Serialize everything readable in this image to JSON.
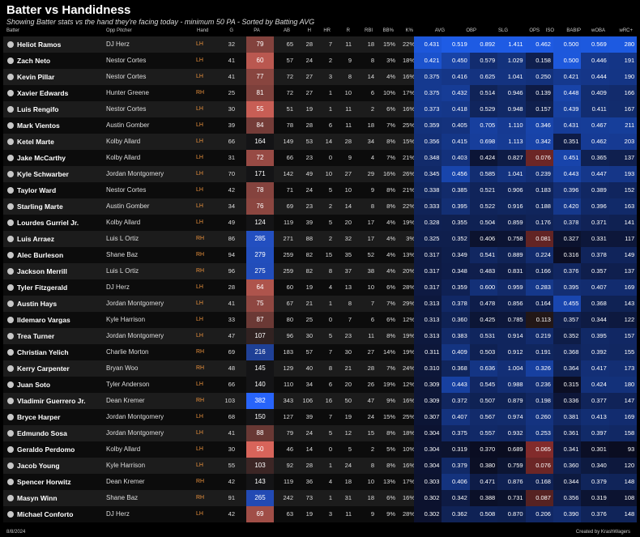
{
  "title": "Batter vs Handidness",
  "subtitle": "Showing Batter stats vs the hand they're facing today - minimum 50 PA - Sorted by Batting AVG",
  "columns": [
    "Batter",
    "Opp Pitcher",
    "Hand",
    "G",
    "PA",
    "AB",
    "H",
    "HR",
    "R",
    "RBI",
    "BB%",
    "K%",
    "AVG",
    "OBP",
    "SLG",
    "OPS",
    "ISO",
    "BABIP",
    "wOBA",
    "wRC+"
  ],
  "footer": {
    "date": "8/8/2024",
    "credit": "Created by KrashWagers"
  },
  "colors": {
    "pa_red": "#c0504d",
    "pa_blue": "#2a5bd7",
    "stat_blue": "#1f4fc0",
    "stat_red": "#a33a3a"
  },
  "rows": [
    {
      "batter": "Heliot Ramos",
      "pitcher": "DJ Herz",
      "hand": "LH",
      "g": "32",
      "pa": "79",
      "ab": "65",
      "h": "28",
      "hr": "7",
      "r": "11",
      "rbi": "18",
      "bb": "15%",
      "k": "22%",
      "avg": "0.431",
      "obp": "0.519",
      "slg": "0.892",
      "ops": "1.411",
      "iso": "0.462",
      "babip": "0.500",
      "woba": "0.569",
      "wrc": "280"
    },
    {
      "batter": "Zach Neto",
      "pitcher": "Nestor Cortes",
      "hand": "LH",
      "g": "41",
      "pa": "60",
      "ab": "57",
      "h": "24",
      "hr": "2",
      "r": "9",
      "rbi": "8",
      "bb": "3%",
      "k": "18%",
      "avg": "0.421",
      "obp": "0.450",
      "slg": "0.579",
      "ops": "1.029",
      "iso": "0.158",
      "babip": "0.500",
      "woba": "0.446",
      "wrc": "191"
    },
    {
      "batter": "Kevin Pillar",
      "pitcher": "Nestor Cortes",
      "hand": "LH",
      "g": "41",
      "pa": "77",
      "ab": "72",
      "h": "27",
      "hr": "3",
      "r": "8",
      "rbi": "14",
      "bb": "4%",
      "k": "16%",
      "avg": "0.375",
      "obp": "0.416",
      "slg": "0.625",
      "ops": "1.041",
      "iso": "0.250",
      "babip": "0.421",
      "woba": "0.444",
      "wrc": "190"
    },
    {
      "batter": "Xavier Edwards",
      "pitcher": "Hunter Greene",
      "hand": "RH",
      "g": "25",
      "pa": "81",
      "ab": "72",
      "h": "27",
      "hr": "1",
      "r": "10",
      "rbi": "6",
      "bb": "10%",
      "k": "17%",
      "avg": "0.375",
      "obp": "0.432",
      "slg": "0.514",
      "ops": "0.946",
      "iso": "0.139",
      "babip": "0.448",
      "woba": "0.409",
      "wrc": "166"
    },
    {
      "batter": "Luis Rengifo",
      "pitcher": "Nestor Cortes",
      "hand": "LH",
      "g": "30",
      "pa": "55",
      "ab": "51",
      "h": "19",
      "hr": "1",
      "r": "11",
      "rbi": "2",
      "bb": "6%",
      "k": "16%",
      "avg": "0.373",
      "obp": "0.418",
      "slg": "0.529",
      "ops": "0.948",
      "iso": "0.157",
      "babip": "0.439",
      "woba": "0.411",
      "wrc": "167"
    },
    {
      "batter": "Mark Vientos",
      "pitcher": "Austin Gomber",
      "hand": "LH",
      "g": "39",
      "pa": "84",
      "ab": "78",
      "h": "28",
      "hr": "6",
      "r": "11",
      "rbi": "18",
      "bb": "7%",
      "k": "25%",
      "avg": "0.359",
      "obp": "0.405",
      "slg": "0.705",
      "ops": "1.110",
      "iso": "0.346",
      "babip": "0.431",
      "woba": "0.467",
      "wrc": "211"
    },
    {
      "batter": "Ketel Marte",
      "pitcher": "Kolby Allard",
      "hand": "LH",
      "g": "66",
      "pa": "164",
      "ab": "149",
      "h": "53",
      "hr": "14",
      "r": "28",
      "rbi": "34",
      "bb": "8%",
      "k": "15%",
      "avg": "0.356",
      "obp": "0.415",
      "slg": "0.698",
      "ops": "1.113",
      "iso": "0.342",
      "babip": "0.351",
      "woba": "0.462",
      "wrc": "203"
    },
    {
      "batter": "Jake McCarthy",
      "pitcher": "Kolby Allard",
      "hand": "LH",
      "g": "31",
      "pa": "72",
      "ab": "66",
      "h": "23",
      "hr": "0",
      "r": "9",
      "rbi": "4",
      "bb": "7%",
      "k": "21%",
      "avg": "0.348",
      "obp": "0.403",
      "slg": "0.424",
      "ops": "0.827",
      "iso": "0.076",
      "babip": "0.451",
      "woba": "0.365",
      "wrc": "137"
    },
    {
      "batter": "Kyle Schwarber",
      "pitcher": "Jordan Montgomery",
      "hand": "LH",
      "g": "70",
      "pa": "171",
      "ab": "142",
      "h": "49",
      "hr": "10",
      "r": "27",
      "rbi": "29",
      "bb": "16%",
      "k": "26%",
      "avg": "0.345",
      "obp": "0.456",
      "slg": "0.585",
      "ops": "1.041",
      "iso": "0.239",
      "babip": "0.443",
      "woba": "0.447",
      "wrc": "193"
    },
    {
      "batter": "Taylor Ward",
      "pitcher": "Nestor Cortes",
      "hand": "LH",
      "g": "42",
      "pa": "78",
      "ab": "71",
      "h": "24",
      "hr": "5",
      "r": "10",
      "rbi": "9",
      "bb": "8%",
      "k": "21%",
      "avg": "0.338",
      "obp": "0.385",
      "slg": "0.521",
      "ops": "0.906",
      "iso": "0.183",
      "babip": "0.396",
      "woba": "0.389",
      "wrc": "152"
    },
    {
      "batter": "Starling Marte",
      "pitcher": "Austin Gomber",
      "hand": "LH",
      "g": "34",
      "pa": "76",
      "ab": "69",
      "h": "23",
      "hr": "2",
      "r": "14",
      "rbi": "8",
      "bb": "8%",
      "k": "22%",
      "avg": "0.333",
      "obp": "0.395",
      "slg": "0.522",
      "ops": "0.916",
      "iso": "0.188",
      "babip": "0.420",
      "woba": "0.396",
      "wrc": "163"
    },
    {
      "batter": "Lourdes Gurriel Jr.",
      "pitcher": "Kolby Allard",
      "hand": "LH",
      "g": "49",
      "pa": "124",
      "ab": "119",
      "h": "39",
      "hr": "5",
      "r": "20",
      "rbi": "17",
      "bb": "4%",
      "k": "19%",
      "avg": "0.328",
      "obp": "0.355",
      "slg": "0.504",
      "ops": "0.859",
      "iso": "0.176",
      "babip": "0.378",
      "woba": "0.371",
      "wrc": "141"
    },
    {
      "batter": "Luis Arraez",
      "pitcher": "Luis L Ortiz",
      "hand": "RH",
      "g": "86",
      "pa": "285",
      "ab": "271",
      "h": "88",
      "hr": "2",
      "r": "32",
      "rbi": "17",
      "bb": "4%",
      "k": "3%",
      "avg": "0.325",
      "obp": "0.352",
      "slg": "0.406",
      "ops": "0.758",
      "iso": "0.081",
      "babip": "0.327",
      "woba": "0.331",
      "wrc": "117"
    },
    {
      "batter": "Alec Burleson",
      "pitcher": "Shane Baz",
      "hand": "RH",
      "g": "94",
      "pa": "279",
      "ab": "259",
      "h": "82",
      "hr": "15",
      "r": "35",
      "rbi": "52",
      "bb": "4%",
      "k": "13%",
      "avg": "0.317",
      "obp": "0.349",
      "slg": "0.541",
      "ops": "0.889",
      "iso": "0.224",
      "babip": "0.316",
      "woba": "0.378",
      "wrc": "149"
    },
    {
      "batter": "Jackson Merrill",
      "pitcher": "Luis L Ortiz",
      "hand": "RH",
      "g": "96",
      "pa": "275",
      "ab": "259",
      "h": "82",
      "hr": "8",
      "r": "37",
      "rbi": "38",
      "bb": "4%",
      "k": "20%",
      "avg": "0.317",
      "obp": "0.348",
      "slg": "0.483",
      "ops": "0.831",
      "iso": "0.166",
      "babip": "0.376",
      "woba": "0.357",
      "wrc": "137"
    },
    {
      "batter": "Tyler Fitzgerald",
      "pitcher": "DJ Herz",
      "hand": "LH",
      "g": "28",
      "pa": "64",
      "ab": "60",
      "h": "19",
      "hr": "4",
      "r": "13",
      "rbi": "10",
      "bb": "6%",
      "k": "28%",
      "avg": "0.317",
      "obp": "0.359",
      "slg": "0.600",
      "ops": "0.959",
      "iso": "0.283",
      "babip": "0.395",
      "woba": "0.407",
      "wrc": "169"
    },
    {
      "batter": "Austin Hays",
      "pitcher": "Jordan Montgomery",
      "hand": "LH",
      "g": "41",
      "pa": "75",
      "ab": "67",
      "h": "21",
      "hr": "1",
      "r": "8",
      "rbi": "7",
      "bb": "7%",
      "k": "29%",
      "avg": "0.313",
      "obp": "0.378",
      "slg": "0.478",
      "ops": "0.856",
      "iso": "0.164",
      "babip": "0.455",
      "woba": "0.368",
      "wrc": "143"
    },
    {
      "batter": "Ildemaro Vargas",
      "pitcher": "Kyle Harrison",
      "hand": "LH",
      "g": "33",
      "pa": "87",
      "ab": "80",
      "h": "25",
      "hr": "0",
      "r": "7",
      "rbi": "6",
      "bb": "6%",
      "k": "12%",
      "avg": "0.313",
      "obp": "0.360",
      "slg": "0.425",
      "ops": "0.785",
      "iso": "0.113",
      "babip": "0.357",
      "woba": "0.344",
      "wrc": "122"
    },
    {
      "batter": "Trea Turner",
      "pitcher": "Jordan Montgomery",
      "hand": "LH",
      "g": "47",
      "pa": "107",
      "ab": "96",
      "h": "30",
      "hr": "5",
      "r": "23",
      "rbi": "11",
      "bb": "8%",
      "k": "19%",
      "avg": "0.313",
      "obp": "0.383",
      "slg": "0.531",
      "ops": "0.914",
      "iso": "0.219",
      "babip": "0.352",
      "woba": "0.395",
      "wrc": "157"
    },
    {
      "batter": "Christian Yelich",
      "pitcher": "Charlie Morton",
      "hand": "RH",
      "g": "69",
      "pa": "216",
      "ab": "183",
      "h": "57",
      "hr": "7",
      "r": "30",
      "rbi": "27",
      "bb": "14%",
      "k": "19%",
      "avg": "0.311",
      "obp": "0.409",
      "slg": "0.503",
      "ops": "0.912",
      "iso": "0.191",
      "babip": "0.368",
      "woba": "0.392",
      "wrc": "155"
    },
    {
      "batter": "Kerry Carpenter",
      "pitcher": "Bryan Woo",
      "hand": "RH",
      "g": "48",
      "pa": "145",
      "ab": "129",
      "h": "40",
      "hr": "8",
      "r": "21",
      "rbi": "28",
      "bb": "7%",
      "k": "24%",
      "avg": "0.310",
      "obp": "0.368",
      "slg": "0.636",
      "ops": "1.004",
      "iso": "0.326",
      "babip": "0.364",
      "woba": "0.417",
      "wrc": "173"
    },
    {
      "batter": "Juan Soto",
      "pitcher": "Tyler Anderson",
      "hand": "LH",
      "g": "66",
      "pa": "140",
      "ab": "110",
      "h": "34",
      "hr": "6",
      "r": "20",
      "rbi": "26",
      "bb": "19%",
      "k": "12%",
      "avg": "0.309",
      "obp": "0.443",
      "slg": "0.545",
      "ops": "0.988",
      "iso": "0.236",
      "babip": "0.315",
      "woba": "0.424",
      "wrc": "180"
    },
    {
      "batter": "Vladimir Guerrero Jr.",
      "pitcher": "Dean Kremer",
      "hand": "RH",
      "g": "103",
      "pa": "382",
      "ab": "343",
      "h": "106",
      "hr": "16",
      "r": "50",
      "rbi": "47",
      "bb": "9%",
      "k": "16%",
      "avg": "0.309",
      "obp": "0.372",
      "slg": "0.507",
      "ops": "0.879",
      "iso": "0.198",
      "babip": "0.336",
      "woba": "0.377",
      "wrc": "147"
    },
    {
      "batter": "Bryce Harper",
      "pitcher": "Jordan Montgomery",
      "hand": "LH",
      "g": "68",
      "pa": "150",
      "ab": "127",
      "h": "39",
      "hr": "7",
      "r": "19",
      "rbi": "24",
      "bb": "15%",
      "k": "25%",
      "avg": "0.307",
      "obp": "0.407",
      "slg": "0.567",
      "ops": "0.974",
      "iso": "0.260",
      "babip": "0.381",
      "woba": "0.413",
      "wrc": "169"
    },
    {
      "batter": "Edmundo Sosa",
      "pitcher": "Jordan Montgomery",
      "hand": "LH",
      "g": "41",
      "pa": "88",
      "ab": "79",
      "h": "24",
      "hr": "5",
      "r": "12",
      "rbi": "15",
      "bb": "8%",
      "k": "18%",
      "avg": "0.304",
      "obp": "0.375",
      "slg": "0.557",
      "ops": "0.932",
      "iso": "0.253",
      "babip": "0.361",
      "woba": "0.397",
      "wrc": "158"
    },
    {
      "batter": "Geraldo Perdomo",
      "pitcher": "Kolby Allard",
      "hand": "LH",
      "g": "30",
      "pa": "50",
      "ab": "46",
      "h": "14",
      "hr": "0",
      "r": "5",
      "rbi": "2",
      "bb": "5%",
      "k": "10%",
      "avg": "0.304",
      "obp": "0.319",
      "slg": "0.370",
      "ops": "0.689",
      "iso": "0.065",
      "babip": "0.341",
      "woba": "0.301",
      "wrc": "93"
    },
    {
      "batter": "Jacob Young",
      "pitcher": "Kyle Harrison",
      "hand": "LH",
      "g": "55",
      "pa": "103",
      "ab": "92",
      "h": "28",
      "hr": "1",
      "r": "24",
      "rbi": "8",
      "bb": "8%",
      "k": "16%",
      "avg": "0.304",
      "obp": "0.379",
      "slg": "0.380",
      "ops": "0.759",
      "iso": "0.076",
      "babip": "0.360",
      "woba": "0.340",
      "wrc": "120"
    },
    {
      "batter": "Spencer Horwitz",
      "pitcher": "Dean Kremer",
      "hand": "RH",
      "g": "42",
      "pa": "143",
      "ab": "119",
      "h": "36",
      "hr": "4",
      "r": "18",
      "rbi": "10",
      "bb": "13%",
      "k": "17%",
      "avg": "0.303",
      "obp": "0.406",
      "slg": "0.471",
      "ops": "0.876",
      "iso": "0.168",
      "babip": "0.344",
      "woba": "0.379",
      "wrc": "148"
    },
    {
      "batter": "Masyn Winn",
      "pitcher": "Shane Baz",
      "hand": "RH",
      "g": "91",
      "pa": "265",
      "ab": "242",
      "h": "73",
      "hr": "1",
      "r": "31",
      "rbi": "18",
      "bb": "6%",
      "k": "16%",
      "avg": "0.302",
      "obp": "0.342",
      "slg": "0.388",
      "ops": "0.731",
      "iso": "0.087",
      "babip": "0.356",
      "woba": "0.319",
      "wrc": "108"
    },
    {
      "batter": "Michael Conforto",
      "pitcher": "DJ Herz",
      "hand": "LH",
      "g": "42",
      "pa": "69",
      "ab": "63",
      "h": "19",
      "hr": "3",
      "r": "11",
      "rbi": "9",
      "bb": "9%",
      "k": "28%",
      "avg": "0.302",
      "obp": "0.362",
      "slg": "0.508",
      "ops": "0.870",
      "iso": "0.206",
      "babip": "0.390",
      "woba": "0.376",
      "wrc": "148"
    }
  ]
}
